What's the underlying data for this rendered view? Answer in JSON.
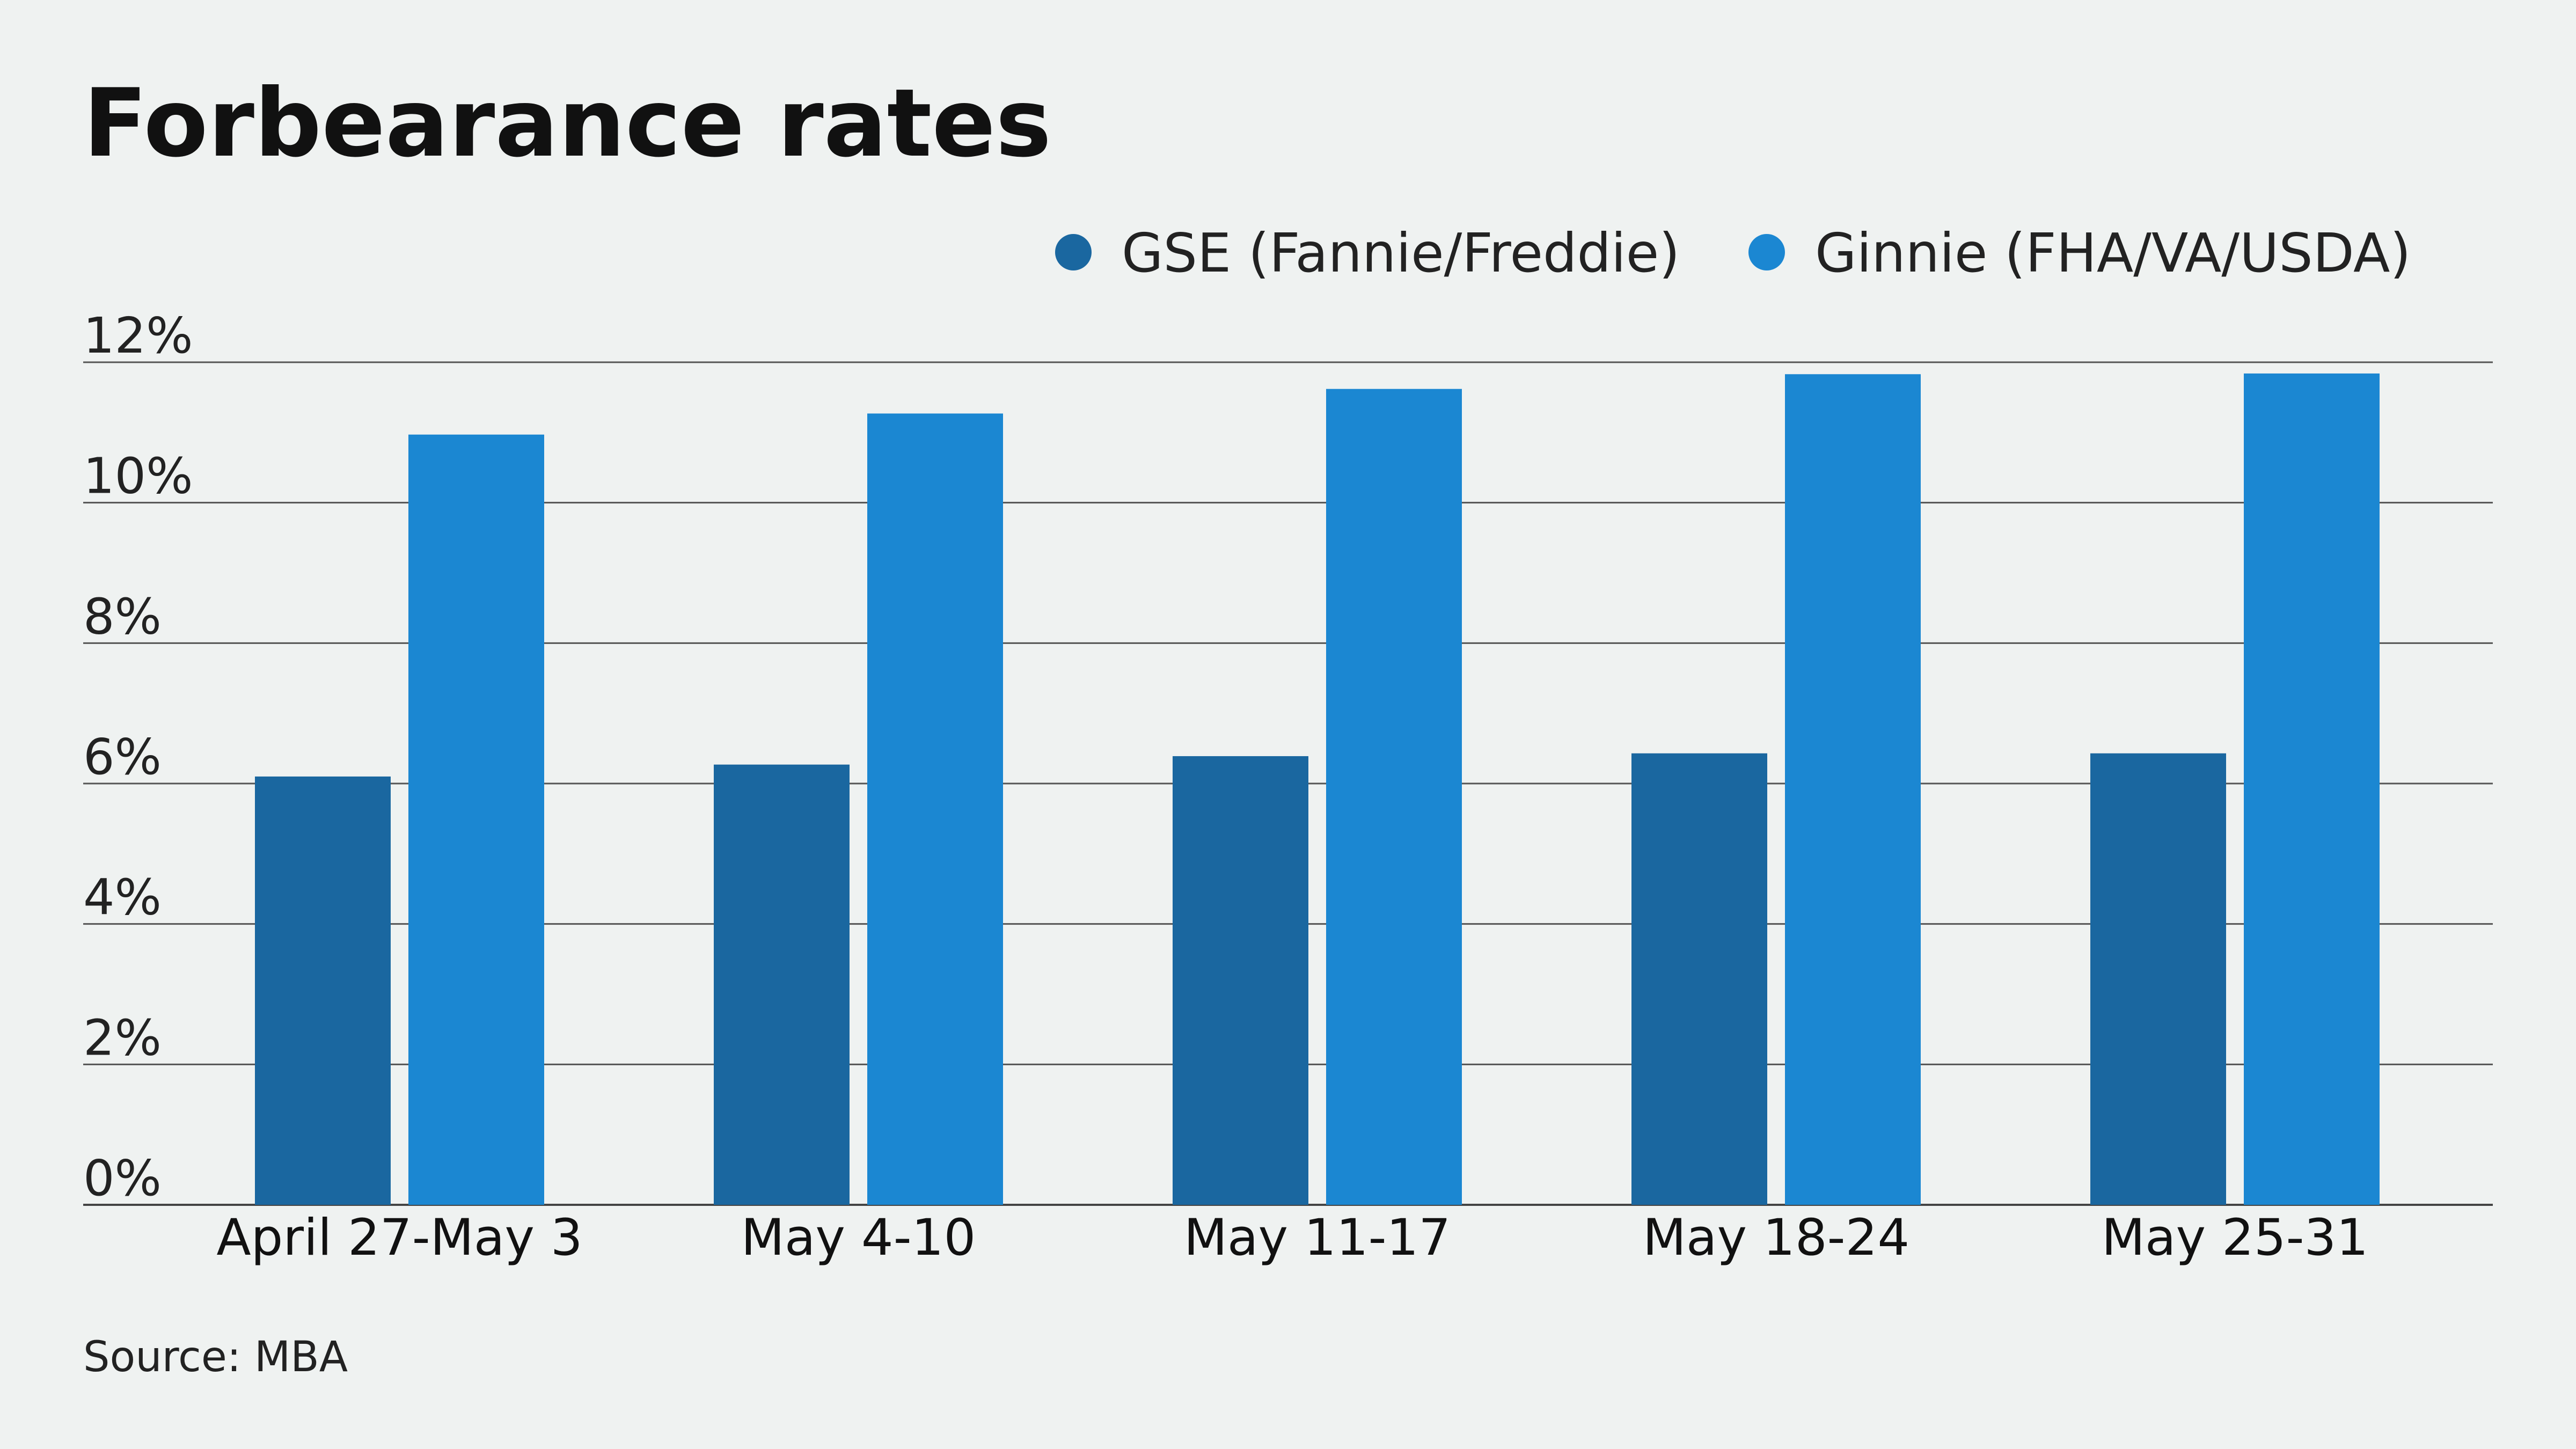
{
  "chart_data": {
    "type": "bar",
    "title": "Forbearance rates",
    "categories": [
      "April 27-May 3",
      "May 4-10",
      "May 11-17",
      "May 18-24",
      "May 25-31"
    ],
    "series": [
      {
        "name": "GSE (Fannie/Freddie)",
        "color": "#1a67a0",
        "values": [
          6.1,
          6.27,
          6.39,
          6.43,
          6.43
        ]
      },
      {
        "name": "Ginnie (FHA/VA/USDA)",
        "color": "#1b87d2",
        "values": [
          10.97,
          11.27,
          11.62,
          11.83,
          11.84
        ]
      }
    ],
    "ylim": [
      0,
      12
    ],
    "yticks": [
      0,
      2,
      4,
      6,
      8,
      10,
      12
    ],
    "ytick_labels": [
      "0%",
      "2%",
      "4%",
      "6%",
      "8%",
      "10%",
      "12%"
    ],
    "grid": true,
    "legend_position": "top-right",
    "xlabel": "",
    "ylabel": ""
  },
  "source": "Source: MBA"
}
